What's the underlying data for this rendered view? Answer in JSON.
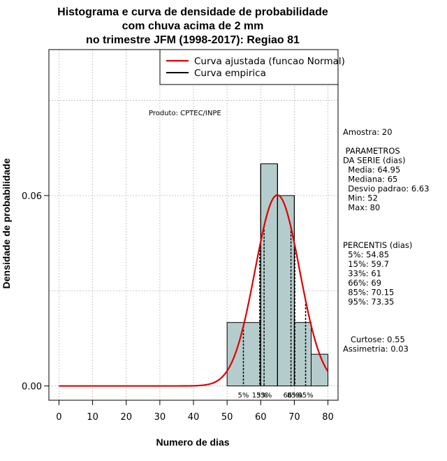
{
  "chart_data": {
    "type": "bar",
    "title": [
      "Histograma e curva de densidade de probabilidade",
      "com chuva acima de 2 mm",
      "no trimestre JFM (1998-2017): Regiao 81"
    ],
    "xlabel": "Numero de dias",
    "ylabel": "Densidade de probabilidade",
    "xlim": [
      -3,
      83
    ],
    "ylim": [
      -0.0045,
      0.106
    ],
    "x_ticks": [
      "0",
      "10",
      "20",
      "30",
      "40",
      "50",
      "60",
      "70",
      "80"
    ],
    "y_ticks": [
      "0.00",
      "0.06"
    ],
    "grid": true,
    "bars": [
      {
        "x0": 50,
        "x1": 60,
        "density": 0.02
      },
      {
        "x0": 60,
        "x1": 65,
        "density": 0.07
      },
      {
        "x0": 65,
        "x1": 70,
        "density": 0.06
      },
      {
        "x0": 70,
        "x1": 75,
        "density": 0.02
      },
      {
        "x0": 75,
        "x1": 80,
        "density": 0.01
      }
    ],
    "bar_color": "#b5cccc",
    "normal_curve": {
      "mean": 64.95,
      "sd": 6.63,
      "color": "#e00000"
    },
    "percentiles": [
      {
        "label": "5%",
        "x": 54.85
      },
      {
        "label": "15%",
        "x": 59.7
      },
      {
        "label": "33%",
        "x": 61
      },
      {
        "label": "66%",
        "x": 69
      },
      {
        "label": "85%",
        "x": 70.15
      },
      {
        "label": "95%",
        "x": 73.35
      }
    ],
    "legend": {
      "position": "top-right",
      "entries": [
        {
          "label": "Curva ajustada (funcao Normal)",
          "color": "#e00000"
        },
        {
          "label": "Curva empirica",
          "color": "#000000"
        }
      ]
    },
    "annotation": "Produto: CPTEC/INPE",
    "side_text": [
      "Amostra: 20",
      "",
      " PARAMETROS",
      "DA SERIE (dias)",
      "  Media: 64.95",
      "  Mediana: 65",
      "  Desvio padrao: 6.63",
      "  Min: 52",
      "  Max: 80",
      "",
      "",
      "",
      "PERCENTIS (dias)",
      "  5%: 54.85",
      "  15%: 59.7",
      "  33%: 61",
      "  66%: 69",
      "  85%: 70.15",
      "  95%: 73.35",
      "",
      "",
      "",
      "   Curtose: 0.55",
      "Assimetria: 0.03"
    ]
  }
}
